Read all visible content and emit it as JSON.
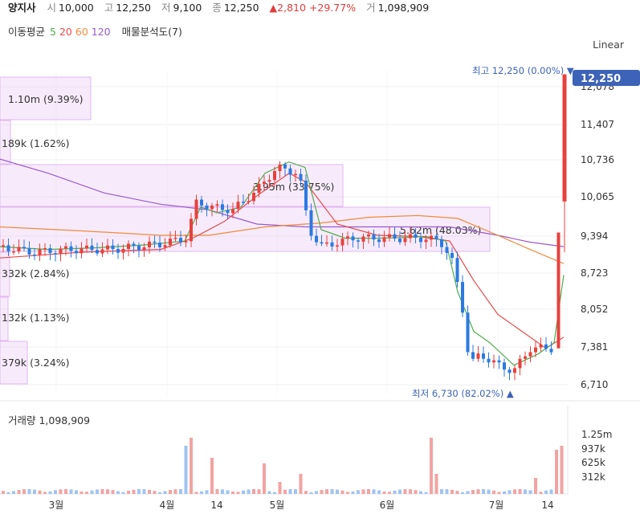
{
  "header": {
    "name": "양지사",
    "open_label": "시",
    "open": "10,000",
    "high_label": "고",
    "high": "12,250",
    "low_label": "저",
    "low": "9,100",
    "close_label": "종",
    "close": "12,250",
    "change": "▲2,810",
    "change_pct": "+29.77%",
    "volume_label": "거",
    "volume": "1,098,909"
  },
  "indicators": {
    "ma_label": "이동평균",
    "ma5": "5",
    "ma20": "20",
    "ma60": "60",
    "ma120": "120",
    "vp_label": "매물분석도(7)"
  },
  "scale_button": "Linear",
  "price_badge": "12,250",
  "high_marker": "최고 12,250 (0.00%) ▼",
  "low_marker": "최저 6,730 (82.02%) ▲",
  "volume_title": "거래량 1,098,909",
  "colors": {
    "up": "#e8413c",
    "down": "#2a7ae2",
    "ma5": "#4fae4c",
    "ma20": "#e84a4a",
    "ma60": "#f08a3a",
    "ma120": "#9b59d0",
    "vp": "#e9c6f3"
  },
  "chart_data": {
    "type": "candlestick",
    "y_ticks": [
      "12,078",
      "11,407",
      "10,736",
      "10,065",
      "9,394",
      "8,723",
      "8,052",
      "7,381",
      "6,710"
    ],
    "ylim": [
      6600,
      12400
    ],
    "x_ticks": [
      "3월",
      "4월",
      "14",
      "5월",
      "6월",
      "7월",
      "14"
    ],
    "volume_ticks": [
      "1.25m",
      "937k",
      "625k",
      "312k"
    ],
    "volume_profile": [
      "1.10m (9.39%)",
      "189k (1.62%)",
      "3.95m (33.75%)",
      "5.62m (48.03%)",
      "332k (2.84%)",
      "132k (1.13%)",
      "379k (3.24%)"
    ],
    "ma5": [
      [
        0,
        9200
      ],
      [
        60,
        9150
      ],
      [
        120,
        9180
      ],
      [
        180,
        9230
      ],
      [
        230,
        9300
      ],
      [
        250,
        9900
      ],
      [
        270,
        9800
      ],
      [
        300,
        9900
      ],
      [
        330,
        10500
      ],
      [
        360,
        10700
      ],
      [
        380,
        10600
      ],
      [
        400,
        9500
      ],
      [
        430,
        9350
      ],
      [
        470,
        9350
      ],
      [
        500,
        9360
      ],
      [
        530,
        9380
      ],
      [
        555,
        9300
      ],
      [
        570,
        8400
      ],
      [
        590,
        7700
      ],
      [
        610,
        7500
      ],
      [
        640,
        7100
      ],
      [
        670,
        7300
      ],
      [
        690,
        7500
      ],
      [
        702,
        8700
      ]
    ],
    "ma20": [
      [
        0,
        9000
      ],
      [
        100,
        9100
      ],
      [
        200,
        9150
      ],
      [
        240,
        9350
      ],
      [
        280,
        9650
      ],
      [
        320,
        10100
      ],
      [
        360,
        10500
      ],
      [
        380,
        10350
      ],
      [
        420,
        9600
      ],
      [
        470,
        9400
      ],
      [
        520,
        9380
      ],
      [
        560,
        9300
      ],
      [
        590,
        8600
      ],
      [
        620,
        8000
      ],
      [
        650,
        7700
      ],
      [
        680,
        7400
      ],
      [
        702,
        7600
      ]
    ],
    "ma60": [
      [
        0,
        9550
      ],
      [
        100,
        9480
      ],
      [
        200,
        9400
      ],
      [
        260,
        9400
      ],
      [
        330,
        9550
      ],
      [
        400,
        9620
      ],
      [
        460,
        9720
      ],
      [
        520,
        9750
      ],
      [
        570,
        9700
      ],
      [
        620,
        9400
      ],
      [
        660,
        9150
      ],
      [
        702,
        8900
      ]
    ],
    "ma120": [
      [
        0,
        10750
      ],
      [
        60,
        10500
      ],
      [
        130,
        10150
      ],
      [
        200,
        9950
      ],
      [
        260,
        9850
      ],
      [
        320,
        9600
      ],
      [
        380,
        9550
      ],
      [
        440,
        9550
      ],
      [
        500,
        9550
      ],
      [
        560,
        9550
      ],
      [
        620,
        9400
      ],
      [
        660,
        9280
      ],
      [
        702,
        9200
      ]
    ]
  }
}
